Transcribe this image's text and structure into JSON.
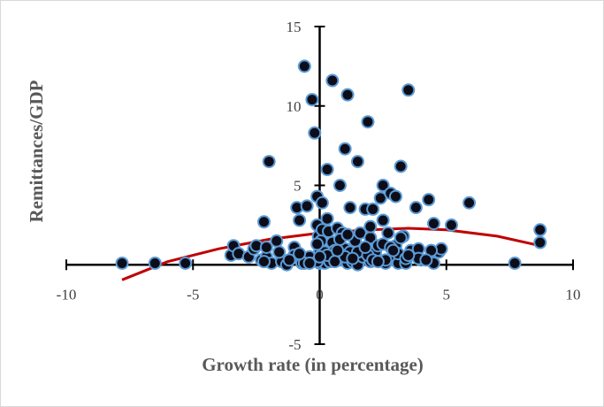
{
  "chart_data": {
    "type": "scatter",
    "title": "",
    "xlabel": "Growth rate (in percentage)",
    "ylabel": "Remittances/GDP",
    "xlim": [
      -10,
      10
    ],
    "ylim": [
      -5,
      15
    ],
    "x_ticks": [
      "-10",
      "-5",
      "0",
      "5",
      "10"
    ],
    "y_ticks": [
      "-5",
      "5",
      "10",
      "15"
    ],
    "grid": false,
    "legend": "none",
    "marker_fill": "#0d0d1a",
    "marker_edge": "#5b9bd5",
    "trend_color": "#c00000",
    "trend": {
      "type": "quadratic",
      "x": [
        -7.8,
        -6,
        -4,
        -2,
        0,
        2,
        3.5,
        5,
        7,
        8.7
      ],
      "y": [
        -0.95,
        0.2,
        1.0,
        1.6,
        2.0,
        2.2,
        2.3,
        2.2,
        1.8,
        1.2
      ]
    },
    "series": [
      {
        "x": [
          -7.8,
          -6.5,
          -5.3,
          -3.5,
          -3.4,
          -3.2,
          -2.8,
          -2.6,
          -2.5,
          -2.3,
          -2.2,
          -2.1,
          -2.0,
          -1.9,
          -1.7,
          -1.5,
          -1.3,
          -1.0,
          -0.9,
          -0.8,
          -0.7,
          -0.6,
          -0.5,
          -0.4,
          -0.3,
          -0.2,
          -0.1,
          -0.1,
          -0.05,
          0.0,
          0.0,
          0.05,
          0.1,
          0.1,
          0.15,
          0.2,
          0.2,
          0.3,
          0.35,
          0.4,
          0.5,
          0.5,
          0.6,
          0.7,
          0.8,
          0.8,
          0.9,
          1.0,
          1.0,
          1.1,
          1.1,
          1.2,
          1.2,
          1.3,
          1.4,
          1.5,
          1.5,
          1.6,
          1.7,
          1.8,
          1.8,
          1.9,
          2.0,
          2.0,
          2.0,
          2.1,
          2.2,
          2.3,
          2.4,
          2.5,
          2.5,
          2.6,
          2.7,
          2.8,
          2.9,
          3.0,
          3.0,
          3.1,
          3.2,
          3.3,
          3.4,
          3.5,
          3.6,
          3.8,
          3.9,
          4.0,
          4.3,
          4.4,
          4.5,
          4.5,
          4.7,
          4.8,
          5.2,
          5.9,
          7.7,
          8.7,
          8.7,
          -2.2,
          -2.1,
          -1.0,
          -0.6,
          -0.1,
          -0.1,
          0.3,
          0.3,
          0.6,
          0.8,
          1.0,
          1.1,
          1.5,
          1.9,
          2.1,
          2.5,
          2.6,
          2.8,
          3.1,
          3.2,
          3.4,
          3.9,
          4.4,
          -1.6,
          -1.2,
          -0.8,
          -0.4,
          0.0,
          0.7,
          1.3,
          1.8,
          2.3,
          2.9,
          3.5,
          4.2
        ],
        "y": [
          0.1,
          0.1,
          0.1,
          0.6,
          1.2,
          0.7,
          0.5,
          1.0,
          1.2,
          0.3,
          2.7,
          0.5,
          6.5,
          0.1,
          1.5,
          0.2,
          0.0,
          1.1,
          3.6,
          2.8,
          0.1,
          12.5,
          3.7,
          0.5,
          10.4,
          8.3,
          4.3,
          2.5,
          1.8,
          0.8,
          0.1,
          1.5,
          2.2,
          3.9,
          0.4,
          0.8,
          0.1,
          6.0,
          2.1,
          0.2,
          1.4,
          11.6,
          0.9,
          2.3,
          5.0,
          0.3,
          2.0,
          7.3,
          1.0,
          10.7,
          0.1,
          3.6,
          0.8,
          0.2,
          1.5,
          0.0,
          6.5,
          2.0,
          0.5,
          3.5,
          1.0,
          9.0,
          1.7,
          2.4,
          0.2,
          3.5,
          0.8,
          1.2,
          4.2,
          5.0,
          2.8,
          0.1,
          2.0,
          4.5,
          0.5,
          1.2,
          4.3,
          0.1,
          6.2,
          1.8,
          0.1,
          11.0,
          0.9,
          3.6,
          1.0,
          0.3,
          4.1,
          0.5,
          2.6,
          0.1,
          0.8,
          1.0,
          2.5,
          3.9,
          0.1,
          2.2,
          1.4,
          0.2,
          1.1,
          0.6,
          0.1,
          1.3,
          0.2,
          0.6,
          2.9,
          0.2,
          1.6,
          0.5,
          1.9,
          0.8,
          0.6,
          0.3,
          1.3,
          0.3,
          1.1,
          0.7,
          1.7,
          0.4,
          0.4,
          0.9,
          0.8,
          0.3,
          0.7,
          0.1,
          0.5,
          0.9,
          0.4,
          1.1,
          0.2,
          0.9,
          0.6,
          0.3
        ]
      }
    ]
  }
}
